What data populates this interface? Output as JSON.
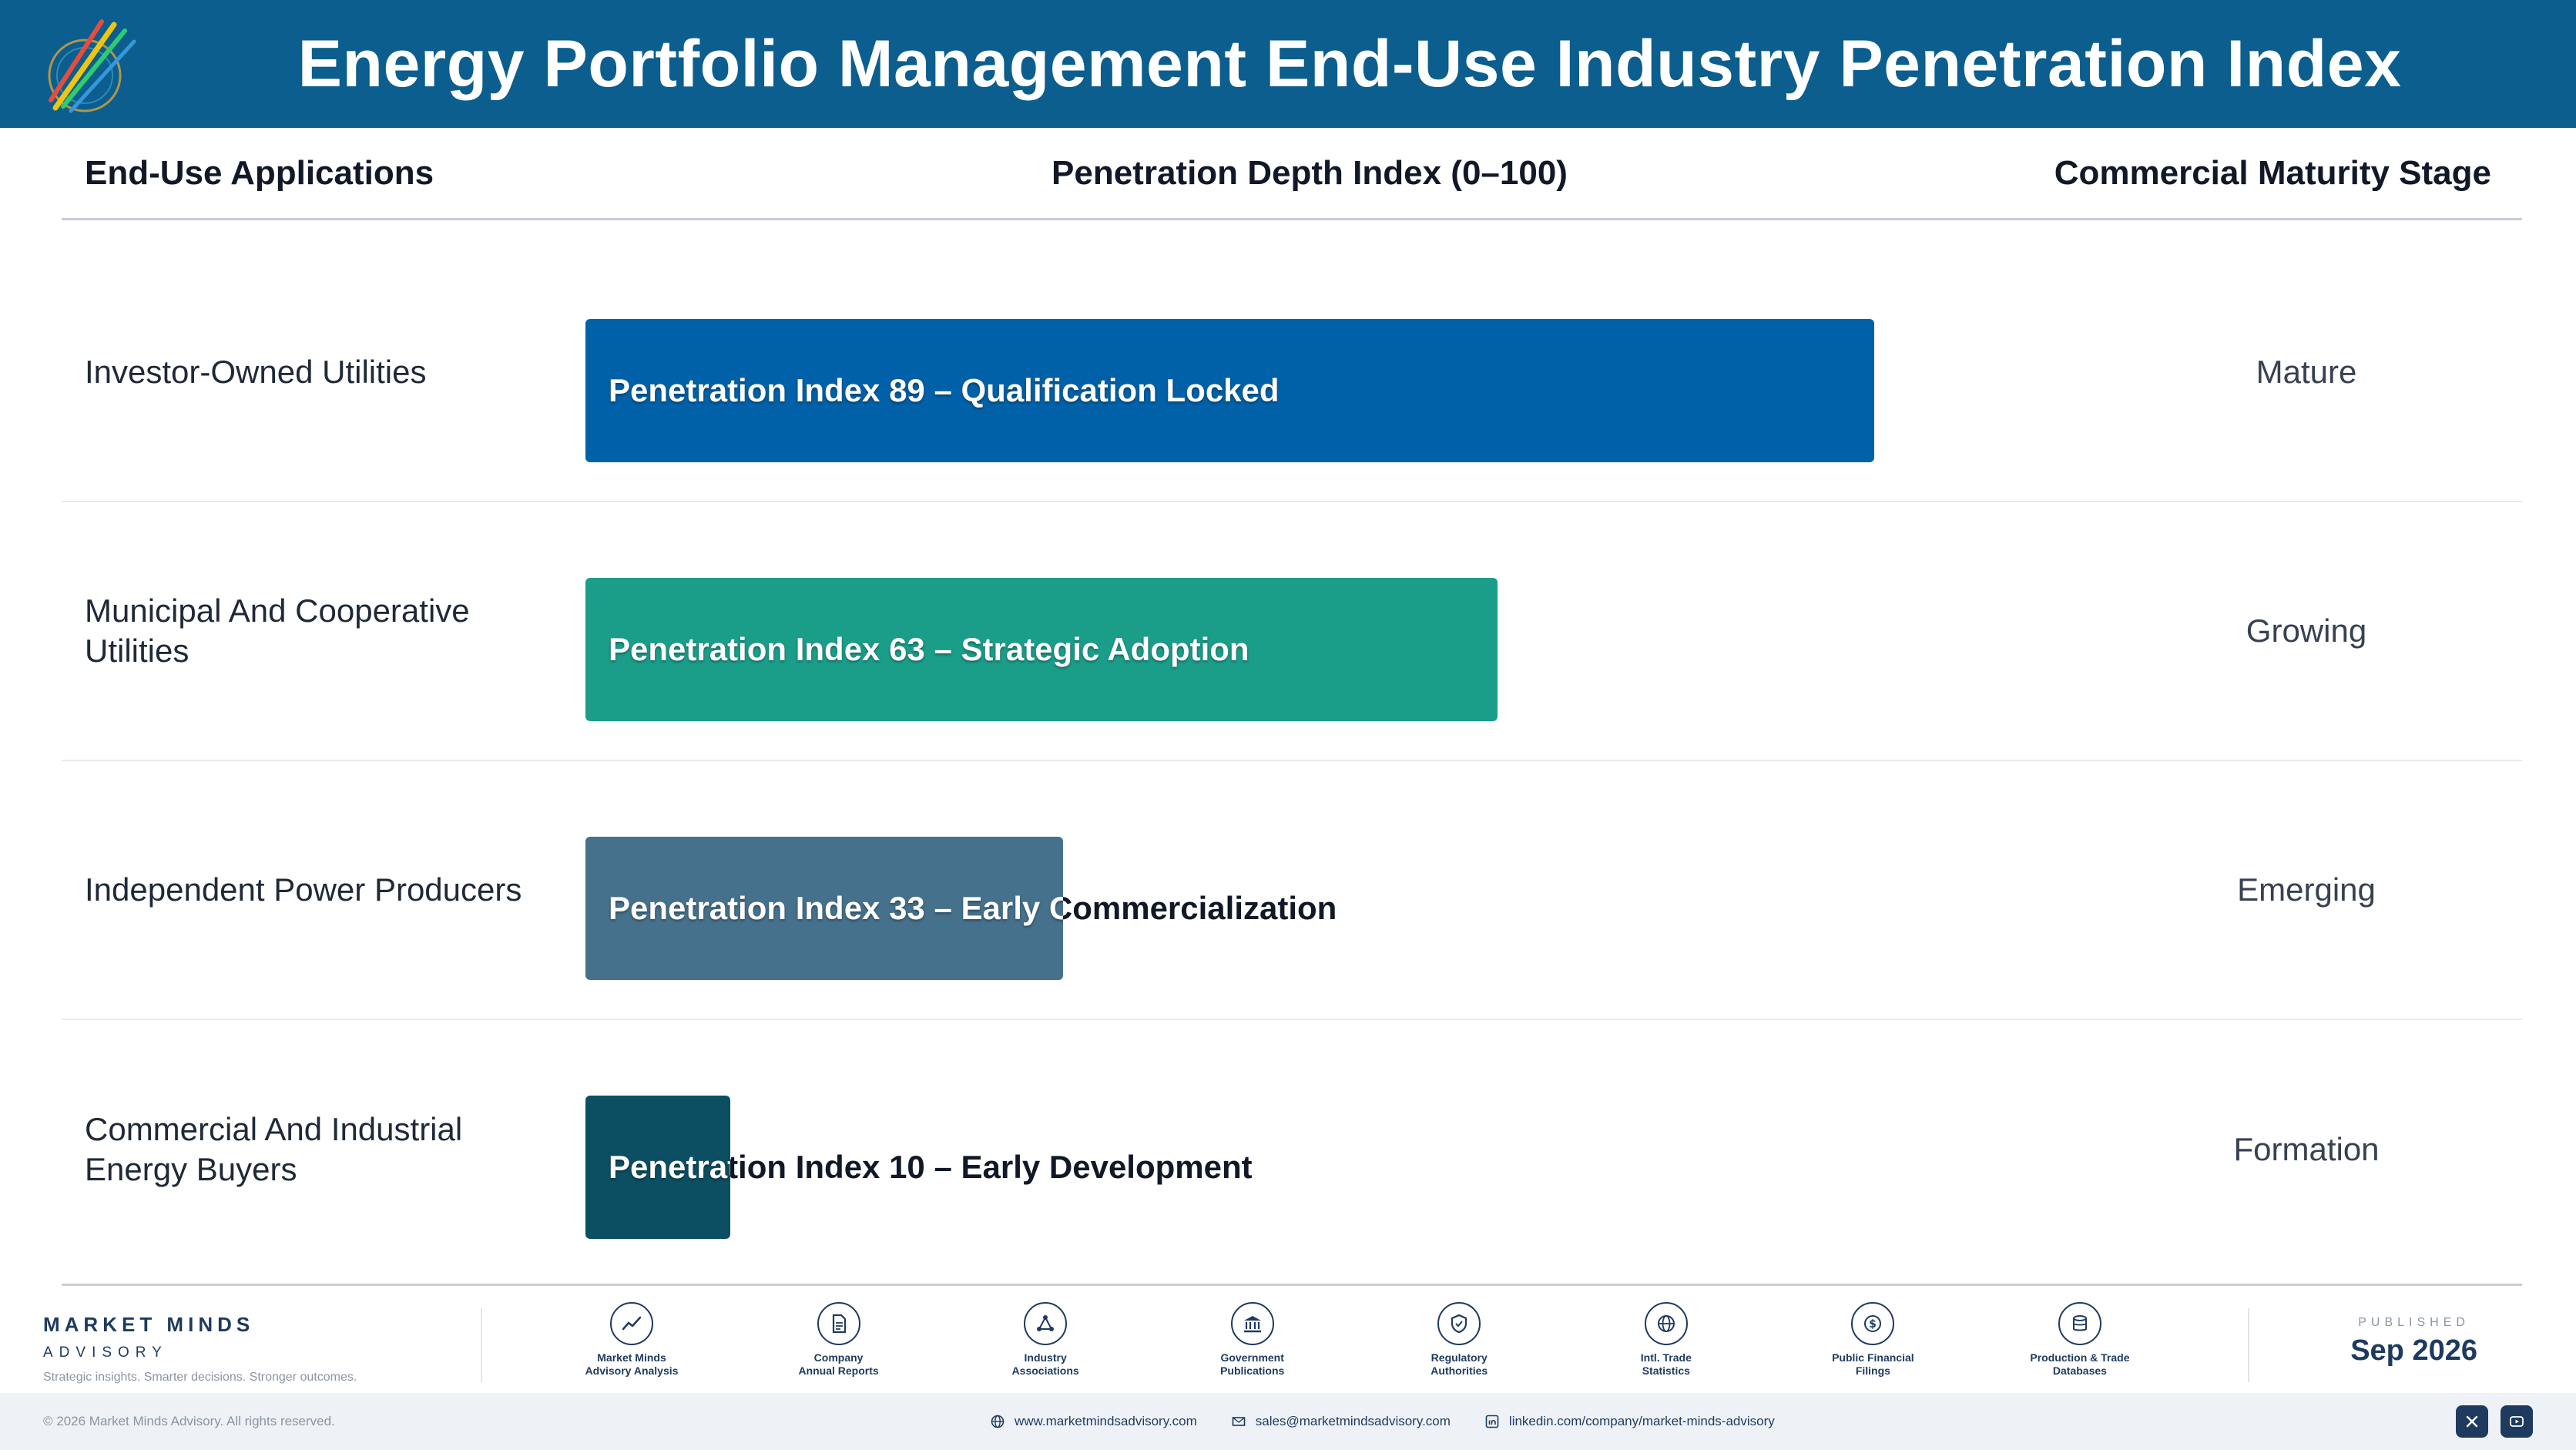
{
  "header": {
    "title": "Energy Portfolio Management End-Use Industry Penetration Index"
  },
  "columns": {
    "applications": "End-Use Applications",
    "index": "Penetration Depth Index (0–100)",
    "stage": "Commercial Maturity Stage"
  },
  "chart_data": {
    "type": "bar",
    "orientation": "horizontal",
    "title": "Energy Portfolio Management End-Use Industry Penetration Index",
    "xlabel": "Penetration Depth Index (0–100)",
    "xlim": [
      0,
      100
    ],
    "categories": [
      "Investor-Owned Utilities",
      "Municipal And Cooperative Utilities",
      "Independent Power Producers",
      "Commercial And Industrial Energy Buyers"
    ],
    "values": [
      89,
      63,
      33,
      10
    ],
    "bar_labels": [
      "Penetration Index 89 – Qualification Locked",
      "Penetration Index 63 – Strategic Adoption",
      "Penetration Index 33 – Early Commercialization",
      "Penetration Index 10 – Early Development"
    ],
    "stages": [
      "Mature",
      "Growing",
      "Emerging",
      "Formation"
    ],
    "colors": [
      "#0061a8",
      "#1a9e8a",
      "#46718d",
      "#0d4f62"
    ]
  },
  "footer": {
    "brand_name": "MARKET MINDS",
    "brand_sub": "ADVISORY",
    "tagline": "Strategic insights. Smarter decisions. Stronger outcomes.",
    "sources": [
      {
        "icon": "chart-line-icon",
        "line1": "Market Minds",
        "line2": "Advisory Analysis"
      },
      {
        "icon": "document-icon",
        "line1": "Company",
        "line2": "Annual Reports"
      },
      {
        "icon": "network-icon",
        "line1": "Industry",
        "line2": "Associations"
      },
      {
        "icon": "government-building-icon",
        "line1": "Government",
        "line2": "Publications"
      },
      {
        "icon": "shield-check-icon",
        "line1": "Regulatory",
        "line2": "Authorities"
      },
      {
        "icon": "globe-icon",
        "line1": "Intl. Trade",
        "line2": "Statistics"
      },
      {
        "icon": "dollar-coin-icon",
        "line1": "Public Financial",
        "line2": "Filings"
      },
      {
        "icon": "database-icon",
        "line1": "Production & Trade",
        "line2": "Databases"
      }
    ],
    "published_label": "PUBLISHED",
    "published_date": "Sep 2026",
    "copyright": "© 2026 Market Minds Advisory. All rights reserved.",
    "website": "www.marketmindsadvisory.com",
    "email": "sales@marketmindsadvisory.com",
    "linkedin": "linkedin.com/company/market-minds-advisory"
  }
}
